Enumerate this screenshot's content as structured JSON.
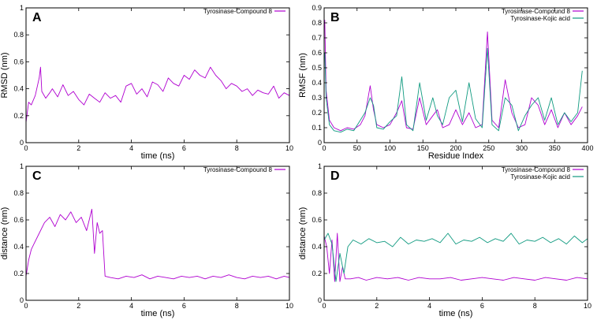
{
  "chart_data": [
    {
      "id": "A",
      "type": "line",
      "panel_label": "A",
      "xlabel": "time (ns)",
      "ylabel": "RMSD (nm)",
      "xlim": [
        0,
        10
      ],
      "ylim": [
        0,
        1
      ],
      "xticks": [
        "0",
        "2",
        "4",
        "6",
        "8",
        "10"
      ],
      "xtick_values": [
        0,
        2,
        4,
        6,
        8,
        10
      ],
      "yticks": [
        "0",
        "0.2",
        "0.4",
        "0.6",
        "0.8",
        "1"
      ],
      "ytick_values": [
        0,
        0.2,
        0.4,
        0.6,
        0.8,
        1
      ],
      "series": [
        {
          "name": "Tyrosinase-Compound 8",
          "color": "#b000d0",
          "x": [
            0,
            0.1,
            0.2,
            0.35,
            0.5,
            0.55,
            0.6,
            0.75,
            0.9,
            1.0,
            1.2,
            1.4,
            1.6,
            1.8,
            2.0,
            2.2,
            2.4,
            2.6,
            2.8,
            3.0,
            3.2,
            3.4,
            3.6,
            3.8,
            4.0,
            4.2,
            4.4,
            4.6,
            4.8,
            5.0,
            5.2,
            5.4,
            5.6,
            5.8,
            6.0,
            6.2,
            6.4,
            6.6,
            6.8,
            7.0,
            7.2,
            7.4,
            7.6,
            7.8,
            8.0,
            8.2,
            8.4,
            8.6,
            8.8,
            9.0,
            9.2,
            9.4,
            9.6,
            9.8,
            10.0
          ],
          "y": [
            0.15,
            0.3,
            0.28,
            0.35,
            0.48,
            0.56,
            0.38,
            0.33,
            0.37,
            0.4,
            0.34,
            0.43,
            0.35,
            0.38,
            0.32,
            0.28,
            0.36,
            0.33,
            0.3,
            0.37,
            0.33,
            0.35,
            0.3,
            0.42,
            0.44,
            0.36,
            0.4,
            0.34,
            0.45,
            0.43,
            0.38,
            0.48,
            0.44,
            0.42,
            0.5,
            0.47,
            0.54,
            0.5,
            0.48,
            0.56,
            0.5,
            0.46,
            0.4,
            0.44,
            0.42,
            0.38,
            0.4,
            0.35,
            0.39,
            0.37,
            0.36,
            0.42,
            0.33,
            0.37,
            0.35
          ]
        }
      ]
    },
    {
      "id": "B",
      "type": "line",
      "panel_label": "B",
      "xlabel": "Residue Index",
      "ylabel": "RMSF (nm)",
      "xlim": [
        0,
        400
      ],
      "ylim": [
        0,
        0.9
      ],
      "xticks": [
        "0",
        "50",
        "100",
        "150",
        "200",
        "250",
        "300",
        "350",
        "400"
      ],
      "xtick_values": [
        0,
        50,
        100,
        150,
        200,
        250,
        300,
        350,
        400
      ],
      "yticks": [
        "0",
        "0.1",
        "0.2",
        "0.3",
        "0.4",
        "0.5",
        "0.6",
        "0.7",
        "0.8",
        "0.9"
      ],
      "ytick_values": [
        0,
        0.1,
        0.2,
        0.3,
        0.4,
        0.5,
        0.6,
        0.7,
        0.8,
        0.9
      ],
      "series": [
        {
          "name": "Tyrosinase-Compound 8",
          "color": "#b000d0",
          "x": [
            1,
            3,
            8,
            15,
            25,
            35,
            45,
            55,
            62,
            70,
            75,
            80,
            90,
            100,
            110,
            118,
            125,
            135,
            145,
            155,
            165,
            172,
            180,
            190,
            200,
            210,
            220,
            230,
            240,
            248,
            255,
            265,
            275,
            285,
            295,
            305,
            315,
            325,
            335,
            345,
            355,
            365,
            375,
            385,
            392
          ],
          "y": [
            0.82,
            0.35,
            0.15,
            0.1,
            0.08,
            0.1,
            0.09,
            0.12,
            0.18,
            0.38,
            0.22,
            0.12,
            0.1,
            0.12,
            0.2,
            0.28,
            0.1,
            0.09,
            0.3,
            0.12,
            0.18,
            0.22,
            0.1,
            0.12,
            0.22,
            0.12,
            0.2,
            0.1,
            0.12,
            0.74,
            0.15,
            0.1,
            0.42,
            0.2,
            0.1,
            0.12,
            0.3,
            0.25,
            0.12,
            0.22,
            0.1,
            0.2,
            0.12,
            0.18,
            0.24
          ]
        },
        {
          "name": "Tyrosinase-Kojic acid",
          "color": "#109a80",
          "x": [
            1,
            3,
            8,
            15,
            25,
            35,
            45,
            55,
            62,
            70,
            75,
            80,
            90,
            100,
            110,
            118,
            125,
            135,
            145,
            155,
            165,
            172,
            180,
            190,
            200,
            210,
            220,
            230,
            240,
            248,
            255,
            265,
            275,
            285,
            295,
            305,
            315,
            325,
            335,
            345,
            355,
            365,
            375,
            385,
            392
          ],
          "y": [
            0.6,
            0.3,
            0.12,
            0.08,
            0.07,
            0.09,
            0.08,
            0.15,
            0.2,
            0.3,
            0.25,
            0.1,
            0.09,
            0.14,
            0.18,
            0.44,
            0.12,
            0.08,
            0.4,
            0.15,
            0.3,
            0.18,
            0.12,
            0.3,
            0.35,
            0.14,
            0.4,
            0.16,
            0.1,
            0.63,
            0.12,
            0.08,
            0.3,
            0.25,
            0.08,
            0.18,
            0.25,
            0.3,
            0.15,
            0.3,
            0.12,
            0.2,
            0.14,
            0.2,
            0.48
          ]
        }
      ]
    },
    {
      "id": "C",
      "type": "line",
      "panel_label": "C",
      "xlabel": "time (ns)",
      "ylabel": "distance (nm)",
      "xlim": [
        0,
        10
      ],
      "ylim": [
        0,
        1
      ],
      "xticks": [
        "0",
        "2",
        "4",
        "6",
        "8",
        "10"
      ],
      "xtick_values": [
        0,
        2,
        4,
        6,
        8,
        10
      ],
      "yticks": [
        "0",
        "0.2",
        "0.4",
        "0.6",
        "0.8",
        "1"
      ],
      "ytick_values": [
        0,
        0.2,
        0.4,
        0.6,
        0.8,
        1
      ],
      "series": [
        {
          "name": "Tyrosinase-Compound 8",
          "color": "#b000d0",
          "x": [
            0,
            0.1,
            0.2,
            0.3,
            0.5,
            0.7,
            0.9,
            1.1,
            1.3,
            1.5,
            1.7,
            1.9,
            2.1,
            2.3,
            2.5,
            2.6,
            2.7,
            2.8,
            2.9,
            3.0,
            3.2,
            3.5,
            3.8,
            4.1,
            4.4,
            4.7,
            5.0,
            5.3,
            5.6,
            5.9,
            6.2,
            6.5,
            6.8,
            7.1,
            7.4,
            7.7,
            8.0,
            8.3,
            8.6,
            8.9,
            9.2,
            9.5,
            9.8,
            10.0
          ],
          "y": [
            0.18,
            0.3,
            0.38,
            0.42,
            0.5,
            0.58,
            0.62,
            0.55,
            0.64,
            0.6,
            0.66,
            0.58,
            0.62,
            0.52,
            0.68,
            0.35,
            0.58,
            0.5,
            0.52,
            0.18,
            0.17,
            0.16,
            0.18,
            0.17,
            0.19,
            0.16,
            0.18,
            0.17,
            0.16,
            0.18,
            0.17,
            0.18,
            0.16,
            0.18,
            0.17,
            0.19,
            0.17,
            0.16,
            0.18,
            0.17,
            0.18,
            0.16,
            0.18,
            0.17
          ]
        }
      ]
    },
    {
      "id": "D",
      "type": "line",
      "panel_label": "D",
      "xlabel": "time (ns)",
      "ylabel": "distance (nm)",
      "xlim": [
        0,
        10
      ],
      "ylim": [
        0,
        1
      ],
      "xticks": [
        "0",
        "2",
        "4",
        "6",
        "8",
        "10"
      ],
      "xtick_values": [
        0,
        2,
        4,
        6,
        8,
        10
      ],
      "yticks": [
        "0",
        "0.2",
        "0.4",
        "0.6",
        "0.8",
        "1"
      ],
      "ytick_values": [
        0,
        0.2,
        0.4,
        0.6,
        0.8,
        1
      ],
      "series": [
        {
          "name": "Tyrosinase-Compound 8",
          "color": "#b000d0",
          "x": [
            0,
            0.1,
            0.2,
            0.3,
            0.4,
            0.5,
            0.6,
            0.7,
            0.8,
            1.0,
            1.3,
            1.6,
            2.0,
            2.4,
            2.8,
            3.2,
            3.6,
            4.0,
            4.4,
            4.8,
            5.2,
            5.6,
            6.0,
            6.4,
            6.8,
            7.2,
            7.6,
            8.0,
            8.4,
            8.8,
            9.2,
            9.6,
            10.0
          ],
          "y": [
            0.48,
            0.4,
            0.2,
            0.45,
            0.14,
            0.5,
            0.14,
            0.25,
            0.16,
            0.16,
            0.17,
            0.15,
            0.17,
            0.16,
            0.17,
            0.15,
            0.17,
            0.16,
            0.16,
            0.17,
            0.15,
            0.16,
            0.17,
            0.16,
            0.15,
            0.17,
            0.16,
            0.15,
            0.17,
            0.16,
            0.15,
            0.17,
            0.16
          ]
        },
        {
          "name": "Tyrosinase-Kojic acid",
          "color": "#109a80",
          "x": [
            0,
            0.15,
            0.3,
            0.45,
            0.6,
            0.75,
            0.9,
            1.1,
            1.4,
            1.7,
            2.0,
            2.3,
            2.6,
            2.9,
            3.2,
            3.5,
            3.8,
            4.1,
            4.4,
            4.7,
            5.0,
            5.3,
            5.6,
            5.9,
            6.2,
            6.5,
            6.8,
            7.1,
            7.4,
            7.7,
            8.0,
            8.3,
            8.6,
            8.9,
            9.2,
            9.5,
            9.8,
            10.0
          ],
          "y": [
            0.45,
            0.5,
            0.42,
            0.14,
            0.35,
            0.2,
            0.4,
            0.45,
            0.42,
            0.46,
            0.43,
            0.44,
            0.4,
            0.47,
            0.42,
            0.45,
            0.44,
            0.46,
            0.43,
            0.5,
            0.42,
            0.45,
            0.44,
            0.47,
            0.43,
            0.46,
            0.44,
            0.5,
            0.42,
            0.45,
            0.44,
            0.47,
            0.43,
            0.46,
            0.42,
            0.48,
            0.43,
            0.46
          ]
        }
      ]
    }
  ]
}
